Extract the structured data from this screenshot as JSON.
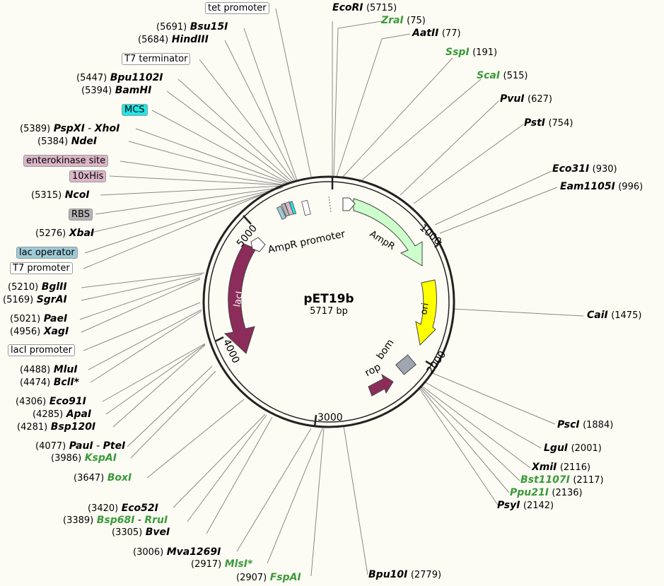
{
  "plasmid": {
    "name": "pET19b",
    "size": "5717 bp"
  },
  "ticks": [
    "1000",
    "2000",
    "3000",
    "4000",
    "5000"
  ],
  "enzymes": [
    {
      "id": "ecori",
      "name": "EcoRI",
      "pos": "(5715)",
      "green": false
    },
    {
      "id": "zrai",
      "name": "ZraI",
      "pos": "(75)",
      "green": true
    },
    {
      "id": "aatii",
      "name": "AatII",
      "pos": "(77)",
      "green": false
    },
    {
      "id": "sspi",
      "name": "SspI",
      "pos": "(191)",
      "green": true
    },
    {
      "id": "scai",
      "name": "ScaI",
      "pos": "(515)",
      "green": true
    },
    {
      "id": "pvui",
      "name": "PvuI",
      "pos": "(627)",
      "green": false
    },
    {
      "id": "psti",
      "name": "PstI",
      "pos": "(754)",
      "green": false
    },
    {
      "id": "eco31i",
      "name": "Eco31I",
      "pos": "(930)",
      "green": false
    },
    {
      "id": "eam1105i",
      "name": "Eam1105I",
      "pos": "(996)",
      "green": false
    },
    {
      "id": "caii",
      "name": "CaiI",
      "pos": "(1475)",
      "green": false
    },
    {
      "id": "psci",
      "name": "PscI",
      "pos": "(1884)",
      "green": false
    },
    {
      "id": "lgui",
      "name": "LguI",
      "pos": "(2001)",
      "green": false
    },
    {
      "id": "xmii",
      "name": "XmiI",
      "pos": "(2116)",
      "green": false
    },
    {
      "id": "bst1107i",
      "name": "Bst1107I",
      "pos": "(2117)",
      "green": true
    },
    {
      "id": "ppu21i",
      "name": "Ppu21I",
      "pos": "(2136)",
      "green": true
    },
    {
      "id": "psyi",
      "name": "PsyI",
      "pos": "(2142)",
      "green": false
    },
    {
      "id": "bpu10i",
      "name": "Bpu10I",
      "pos": "(2779)",
      "green": false
    },
    {
      "id": "fspai",
      "name": "FspAI",
      "pos": "(2907)",
      "green": true
    },
    {
      "id": "mlsi",
      "name": "MlsI*",
      "pos": "(2917)",
      "green": true
    },
    {
      "id": "mva1269i",
      "name": "Mva1269I",
      "pos": "(3006)",
      "green": false
    },
    {
      "id": "bvei",
      "name": "BveI",
      "pos": "(3305)",
      "green": false
    },
    {
      "id": "bsp68i",
      "name": "Bsp68I",
      "name2": "RruI",
      "pos": "(3389)",
      "green": true
    },
    {
      "id": "eco52i",
      "name": "Eco52I",
      "pos": "(3420)",
      "green": false
    },
    {
      "id": "boxi",
      "name": "BoxI",
      "pos": "(3647)",
      "green": true
    },
    {
      "id": "kspai",
      "name": "KspAI",
      "pos": "(3986)",
      "green": true
    },
    {
      "id": "paui",
      "name": "PauI",
      "name2": "PteI",
      "pos": "(4077)",
      "green": false
    },
    {
      "id": "bsp120i",
      "name": "Bsp120I",
      "pos": "(4281)",
      "green": false
    },
    {
      "id": "apai",
      "name": "ApaI",
      "pos": "(4285)",
      "green": false
    },
    {
      "id": "eco91i",
      "name": "Eco91I",
      "pos": "(4306)",
      "green": false
    },
    {
      "id": "bcli",
      "name": "BclI*",
      "pos": "(4474)",
      "green": false
    },
    {
      "id": "mlui",
      "name": "MluI",
      "pos": "(4488)",
      "green": false
    },
    {
      "id": "xagi",
      "name": "XagI",
      "pos": "(4956)",
      "green": false
    },
    {
      "id": "paei",
      "name": "PaeI",
      "pos": "(5021)",
      "green": false
    },
    {
      "id": "sgrai",
      "name": "SgrAI",
      "pos": "(5169)",
      "green": false
    },
    {
      "id": "bglii",
      "name": "BglII",
      "pos": "(5210)",
      "green": false
    },
    {
      "id": "xbai",
      "name": "XbaI",
      "pos": "(5276)",
      "green": false
    },
    {
      "id": "ncoi",
      "name": "NcoI",
      "pos": "(5315)",
      "green": false
    },
    {
      "id": "ndei",
      "name": "NdeI",
      "pos": "(5384)",
      "green": false
    },
    {
      "id": "pspxi",
      "name": "PspXI",
      "name2": "XhoI",
      "pos": "(5389)",
      "green": false
    },
    {
      "id": "bamhi",
      "name": "BamHI",
      "pos": "(5394)",
      "green": false
    },
    {
      "id": "bpu1102i",
      "name": "Bpu1102I",
      "pos": "(5447)",
      "green": false
    },
    {
      "id": "hindiii",
      "name": "HindIII",
      "pos": "(5684)",
      "green": false
    },
    {
      "id": "bsu15i",
      "name": "Bsu15I",
      "pos": "(5691)",
      "green": false
    }
  ],
  "features": [
    {
      "id": "tet-promoter",
      "label": "tet promoter",
      "color": "#ffffff"
    },
    {
      "id": "t7-terminator",
      "label": "T7 terminator",
      "color": "#ffffff"
    },
    {
      "id": "mcs",
      "label": "MCS",
      "color": "#22e6e6"
    },
    {
      "id": "enterokinase-site",
      "label": "enterokinase site",
      "color": "#dcb6c8"
    },
    {
      "id": "10xhis",
      "label": "10xHis",
      "color": "#dcb6c8"
    },
    {
      "id": "rbs",
      "label": "RBS",
      "color": "#b4b4b4"
    },
    {
      "id": "lac-operator",
      "label": "lac operator",
      "color": "#9ecad8"
    },
    {
      "id": "t7-promoter",
      "label": "T7 promoter",
      "color": "#ffffff"
    },
    {
      "id": "laci-promoter",
      "label": "lacI promoter",
      "color": "#ffffff"
    }
  ],
  "arcs": {
    "ampr_promoter": "AmpR promoter",
    "ampr": "AmpR",
    "ori": "ori",
    "bom": "bom",
    "rop": "rop",
    "laci": "lacI"
  },
  "colors": {
    "ampr": "#ccffcc",
    "ori": "#ffff00",
    "laci": "#8b2c5a",
    "rop": "#8b2c5a",
    "bom": "#a0a6b0"
  }
}
